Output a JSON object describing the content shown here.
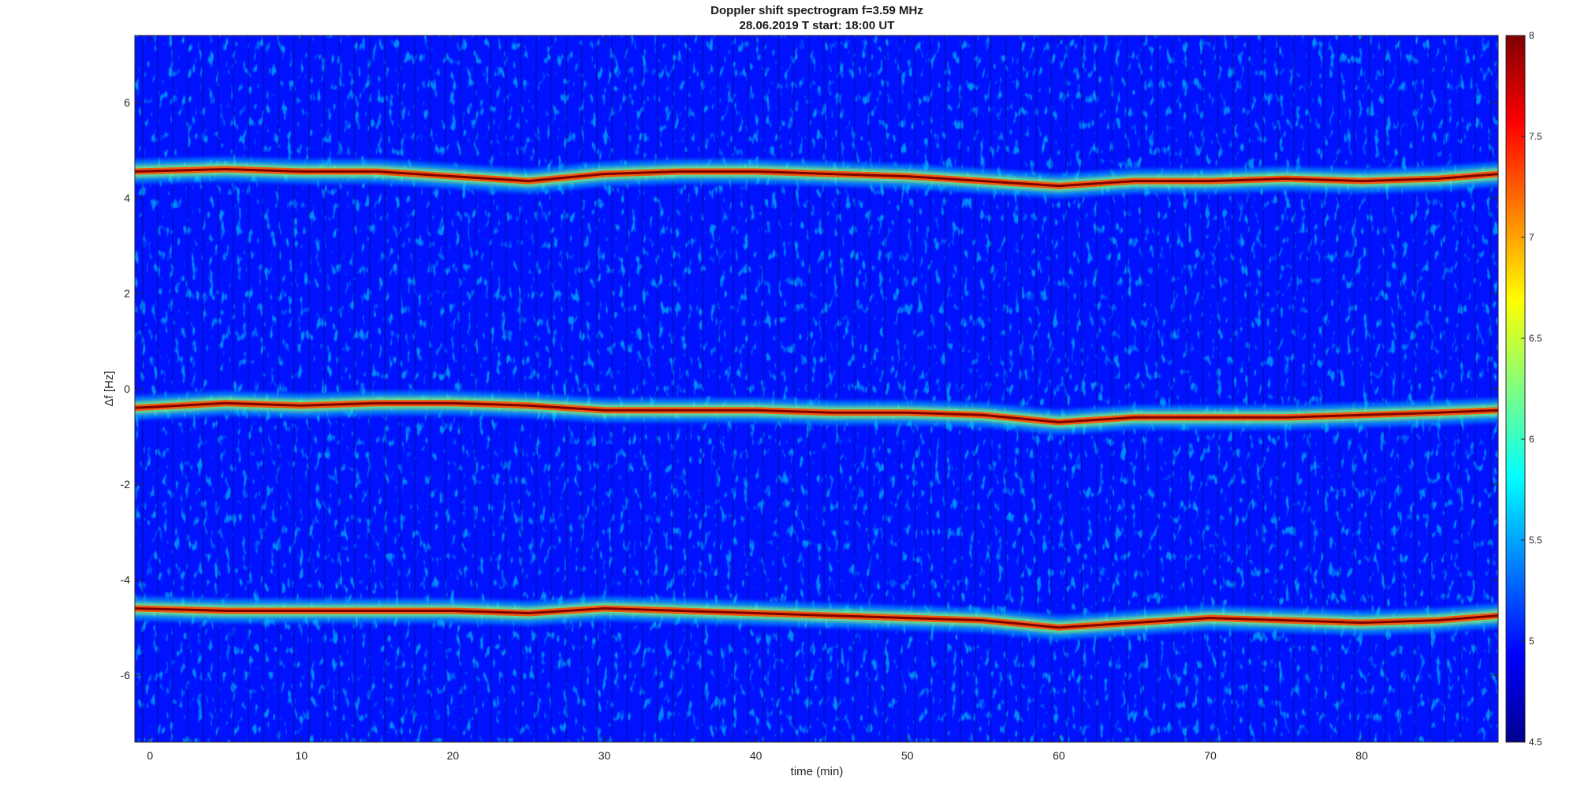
{
  "chart_data": {
    "type": "heatmap",
    "title": "Doppler shift spectrogram f=3.59 MHz",
    "subtitle": "28.06.2019   T start: 18:00 UT",
    "xlabel": "time (min)",
    "ylabel": "Δf [Hz]",
    "xlim": [
      -1,
      89
    ],
    "ylim": [
      -7.4,
      7.4
    ],
    "x_ticks": [
      0,
      10,
      20,
      30,
      40,
      50,
      60,
      70,
      80
    ],
    "y_ticks": [
      6,
      4,
      2,
      0,
      -2,
      -4,
      -6
    ],
    "colorbar": {
      "range": [
        4.5,
        8
      ],
      "ticks": [
        "8",
        "7.5",
        "7",
        "6.5",
        "6",
        "5.5",
        "5",
        "4.5"
      ],
      "colormap": "jet"
    },
    "background_level": 5.0,
    "series": [
      {
        "peak_level": 8,
        "x": [
          -1,
          5,
          10,
          15,
          20,
          25,
          30,
          35,
          40,
          45,
          50,
          55,
          60,
          65,
          70,
          75,
          80,
          85,
          89
        ],
        "y": [
          4.55,
          4.6,
          4.55,
          4.55,
          4.45,
          4.35,
          4.5,
          4.55,
          4.55,
          4.5,
          4.45,
          4.35,
          4.25,
          4.35,
          4.35,
          4.4,
          4.35,
          4.4,
          4.5
        ]
      },
      {
        "peak_level": 8,
        "x": [
          -1,
          5,
          10,
          15,
          20,
          25,
          30,
          35,
          40,
          45,
          50,
          55,
          60,
          65,
          70,
          75,
          80,
          85,
          89
        ],
        "y": [
          -0.4,
          -0.3,
          -0.35,
          -0.3,
          -0.3,
          -0.35,
          -0.45,
          -0.45,
          -0.45,
          -0.5,
          -0.5,
          -0.55,
          -0.7,
          -0.6,
          -0.6,
          -0.6,
          -0.55,
          -0.5,
          -0.45
        ]
      },
      {
        "peak_level": 8,
        "x": [
          -1,
          5,
          10,
          15,
          20,
          25,
          30,
          35,
          40,
          45,
          50,
          55,
          60,
          65,
          70,
          75,
          80,
          85,
          89
        ],
        "y": [
          -4.6,
          -4.65,
          -4.65,
          -4.65,
          -4.65,
          -4.7,
          -4.6,
          -4.65,
          -4.7,
          -4.75,
          -4.8,
          -4.85,
          -5.0,
          -4.9,
          -4.8,
          -4.85,
          -4.9,
          -4.85,
          -4.75
        ]
      }
    ]
  }
}
